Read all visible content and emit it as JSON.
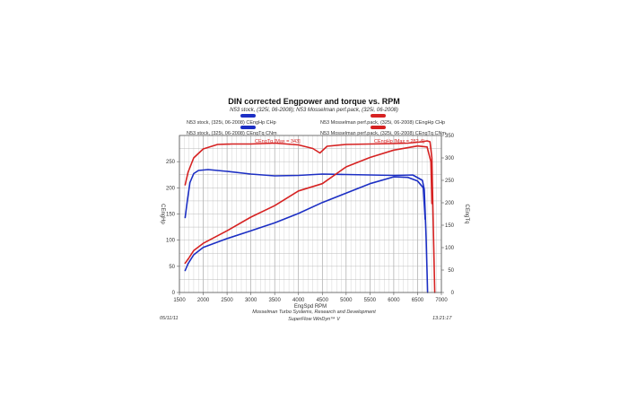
{
  "chart_data": {
    "type": "line",
    "title": "DIN corrected Engpower and torque vs. RPM",
    "subtitle": "N53 stock, (325i, 06-2008); N53 Mosselman perf.pack, (325i, 06-2008)",
    "xlabel": "EngSpd  RPM",
    "ylabel_left": "CEngHp",
    "ylabel_right": "CEngTq",
    "xlim": [
      1500,
      7000
    ],
    "ylim_left": [
      0,
      300
    ],
    "ylim_right": [
      0,
      350
    ],
    "x_ticks": [
      1500,
      2000,
      2500,
      3000,
      3500,
      4000,
      4500,
      5000,
      5500,
      6000,
      6500,
      7000
    ],
    "y_left_ticks": [
      0,
      50,
      100,
      150,
      200,
      250
    ],
    "y_right_ticks": [
      0,
      50,
      100,
      150,
      200,
      250,
      300,
      350
    ],
    "grid": true,
    "legend_placement": "top",
    "legend": [
      {
        "label": "N53 stock, (325i, 06-2008)  CEngHp   CHp",
        "color": "#1c2fc4"
      },
      {
        "label": "N53 stock, (325i, 06-2008)  CEngTq   CNm",
        "color": "#1c2fc4"
      },
      {
        "label": "N53 Mosselman perf.pack, (325i, 06-2008)  CEngHp   CHp",
        "color": "#d62222"
      },
      {
        "label": "N53 Mosselman perf.pack, (325i, 06-2008)  CEngTq   CNm",
        "color": "#d62222"
      }
    ],
    "annotations": [
      {
        "text": "CEngTq [Max = 343]",
        "color": "#d62222"
      },
      {
        "text": "CEngHp [Max = 282.4]",
        "color": "#d62222"
      }
    ],
    "series": [
      {
        "color": "#1c2fc4",
        "axis": "left",
        "x": [
          1620,
          1680,
          1800,
          2000,
          2500,
          3000,
          3500,
          4000,
          4500,
          5000,
          5500,
          6000,
          6300,
          6500,
          6620,
          6660
        ],
        "y": [
          42,
          55,
          72,
          86,
          103,
          118,
          133,
          151,
          172,
          190,
          208,
          221,
          220,
          213,
          200,
          140
        ]
      },
      {
        "color": "#1c2fc4",
        "axis": "right",
        "x": [
          1620,
          1660,
          1720,
          1800,
          1900,
          2100,
          2500,
          3000,
          3500,
          4000,
          4500,
          5000,
          5500,
          6000,
          6400,
          6600,
          6640,
          6660,
          6680,
          6700,
          6710
        ],
        "y": [
          167,
          200,
          245,
          265,
          272,
          274,
          270,
          264,
          260,
          261,
          264,
          263,
          262,
          261,
          262,
          250,
          230,
          180,
          120,
          40,
          0
        ]
      },
      {
        "color": "#d62222",
        "axis": "left",
        "x": [
          1620,
          1700,
          1800,
          2000,
          2500,
          3000,
          3500,
          4000,
          4500,
          5000,
          5500,
          6000,
          6500,
          6700,
          6780,
          6800
        ],
        "y": [
          56,
          66,
          80,
          94,
          118,
          144,
          166,
          194,
          208,
          240,
          258,
          272,
          280,
          278,
          250,
          170
        ]
      },
      {
        "color": "#d62222",
        "axis": "right",
        "x": [
          1620,
          1680,
          1800,
          2000,
          2300,
          2600,
          3000,
          3500,
          4000,
          4300,
          4450,
          4600,
          5000,
          5500,
          6000,
          6300,
          6600,
          6700,
          6760,
          6800,
          6820,
          6840,
          6860
        ],
        "y": [
          240,
          268,
          300,
          320,
          330,
          331,
          331,
          333,
          329,
          321,
          311,
          326,
          330,
          331,
          332,
          333,
          336,
          338,
          336,
          300,
          200,
          100,
          0
        ]
      }
    ]
  },
  "footer": {
    "date": "05/11/11",
    "time": "13:21:17",
    "line1": "Mosselman Turbo Systems, Research and Development",
    "line2": "SuperFlow WinDyn™ V"
  }
}
